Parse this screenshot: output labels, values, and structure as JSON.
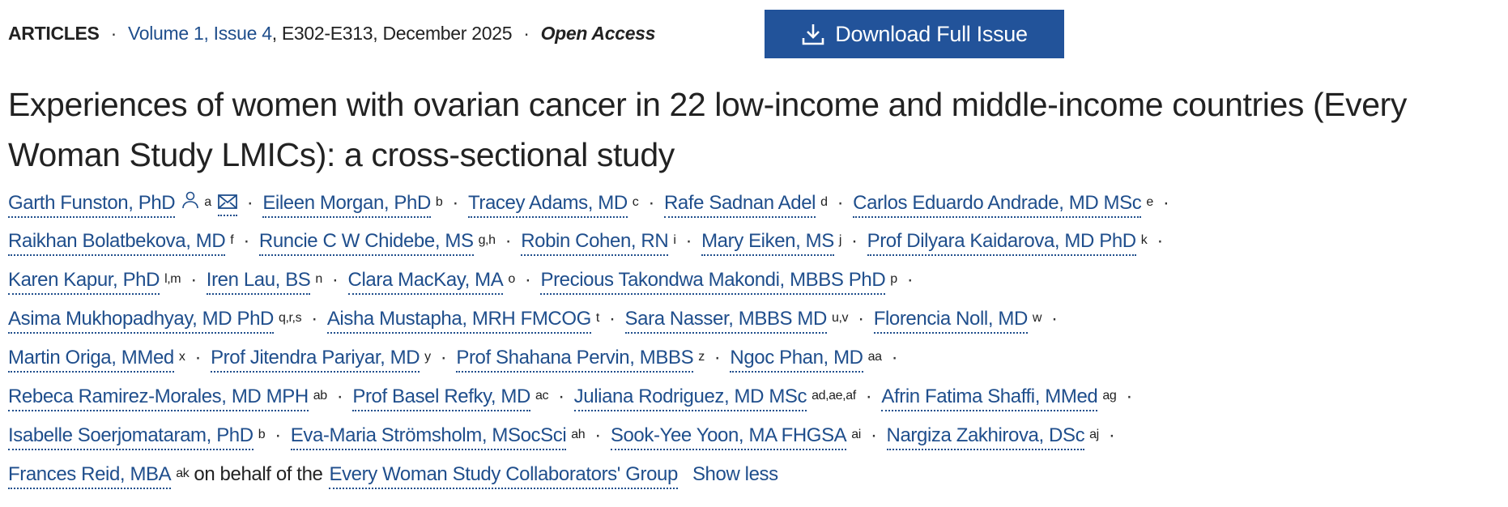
{
  "meta": {
    "type": "ARTICLES",
    "issue_link": "Volume 1, Issue 4",
    "pages_date": ", E302-E313, December 2025",
    "access": "Open Access"
  },
  "download_button": {
    "label": "Download Full Issue",
    "icon": "download-icon"
  },
  "title": "Experiences of women with ovarian cancer in 22 low-income and middle-income countries (Every Woman Study LMICs): a cross-sectional study",
  "authors": [
    [
      {
        "name": "Garth Funston, PhD",
        "aff": "a",
        "icons": true
      },
      {
        "name": "Eileen Morgan, PhD",
        "aff": "b"
      },
      {
        "name": "Tracey Adams, MD",
        "aff": "c"
      },
      {
        "name": "Rafe Sadnan Adel",
        "aff": "d"
      },
      {
        "name": "Carlos Eduardo Andrade, MD MSc",
        "aff": "e"
      }
    ],
    [
      {
        "name": "Raikhan Bolatbekova, MD",
        "aff": "f"
      },
      {
        "name": "Runcie C W Chidebe, MS",
        "aff": "g,h"
      },
      {
        "name": "Robin Cohen, RN",
        "aff": "i"
      },
      {
        "name": "Mary Eiken, MS",
        "aff": "j"
      },
      {
        "name": "Prof Dilyara Kaidarova, MD PhD",
        "aff": "k"
      }
    ],
    [
      {
        "name": "Karen Kapur, PhD",
        "aff": "l,m"
      },
      {
        "name": "Iren Lau, BS",
        "aff": "n"
      },
      {
        "name": "Clara MacKay, MA",
        "aff": "o"
      },
      {
        "name": "Precious Takondwa Makondi, MBBS PhD",
        "aff": "p"
      }
    ],
    [
      {
        "name": "Asima Mukhopadhyay, MD PhD",
        "aff": "q,r,s"
      },
      {
        "name": "Aisha Mustapha, MRH FMCOG",
        "aff": "t"
      },
      {
        "name": "Sara Nasser, MBBS MD",
        "aff": "u,v"
      },
      {
        "name": "Florencia Noll, MD",
        "aff": "w"
      }
    ],
    [
      {
        "name": "Martin Origa, MMed",
        "aff": "x"
      },
      {
        "name": "Prof Jitendra Pariyar, MD",
        "aff": "y"
      },
      {
        "name": "Prof Shahana Pervin, MBBS",
        "aff": "z"
      },
      {
        "name": "Ngoc Phan, MD",
        "aff": "aa"
      }
    ],
    [
      {
        "name": "Rebeca Ramirez-Morales, MD MPH",
        "aff": "ab"
      },
      {
        "name": "Prof Basel Refky, MD",
        "aff": "ac"
      },
      {
        "name": "Juliana Rodriguez, MD MSc",
        "aff": "ad,ae,af"
      },
      {
        "name": "Afrin Fatima Shaffi, MMed",
        "aff": "ag"
      }
    ],
    [
      {
        "name": "Isabelle Soerjomataram, PhD",
        "aff": "b"
      },
      {
        "name": "Eva-Maria Strömsholm, MSocSci",
        "aff": "ah"
      },
      {
        "name": "Sook-Yee Yoon, MA FHGSA",
        "aff": "ai"
      },
      {
        "name": "Nargiza Zakhirova, DSc",
        "aff": "aj"
      }
    ],
    [
      {
        "name": "Frances Reid, MBA",
        "aff": "ak"
      }
    ]
  ],
  "behalf_text": "on behalf of the",
  "group_link": "Every Woman Study Collaborators' Group",
  "show_less": "Show less",
  "separator": "·"
}
